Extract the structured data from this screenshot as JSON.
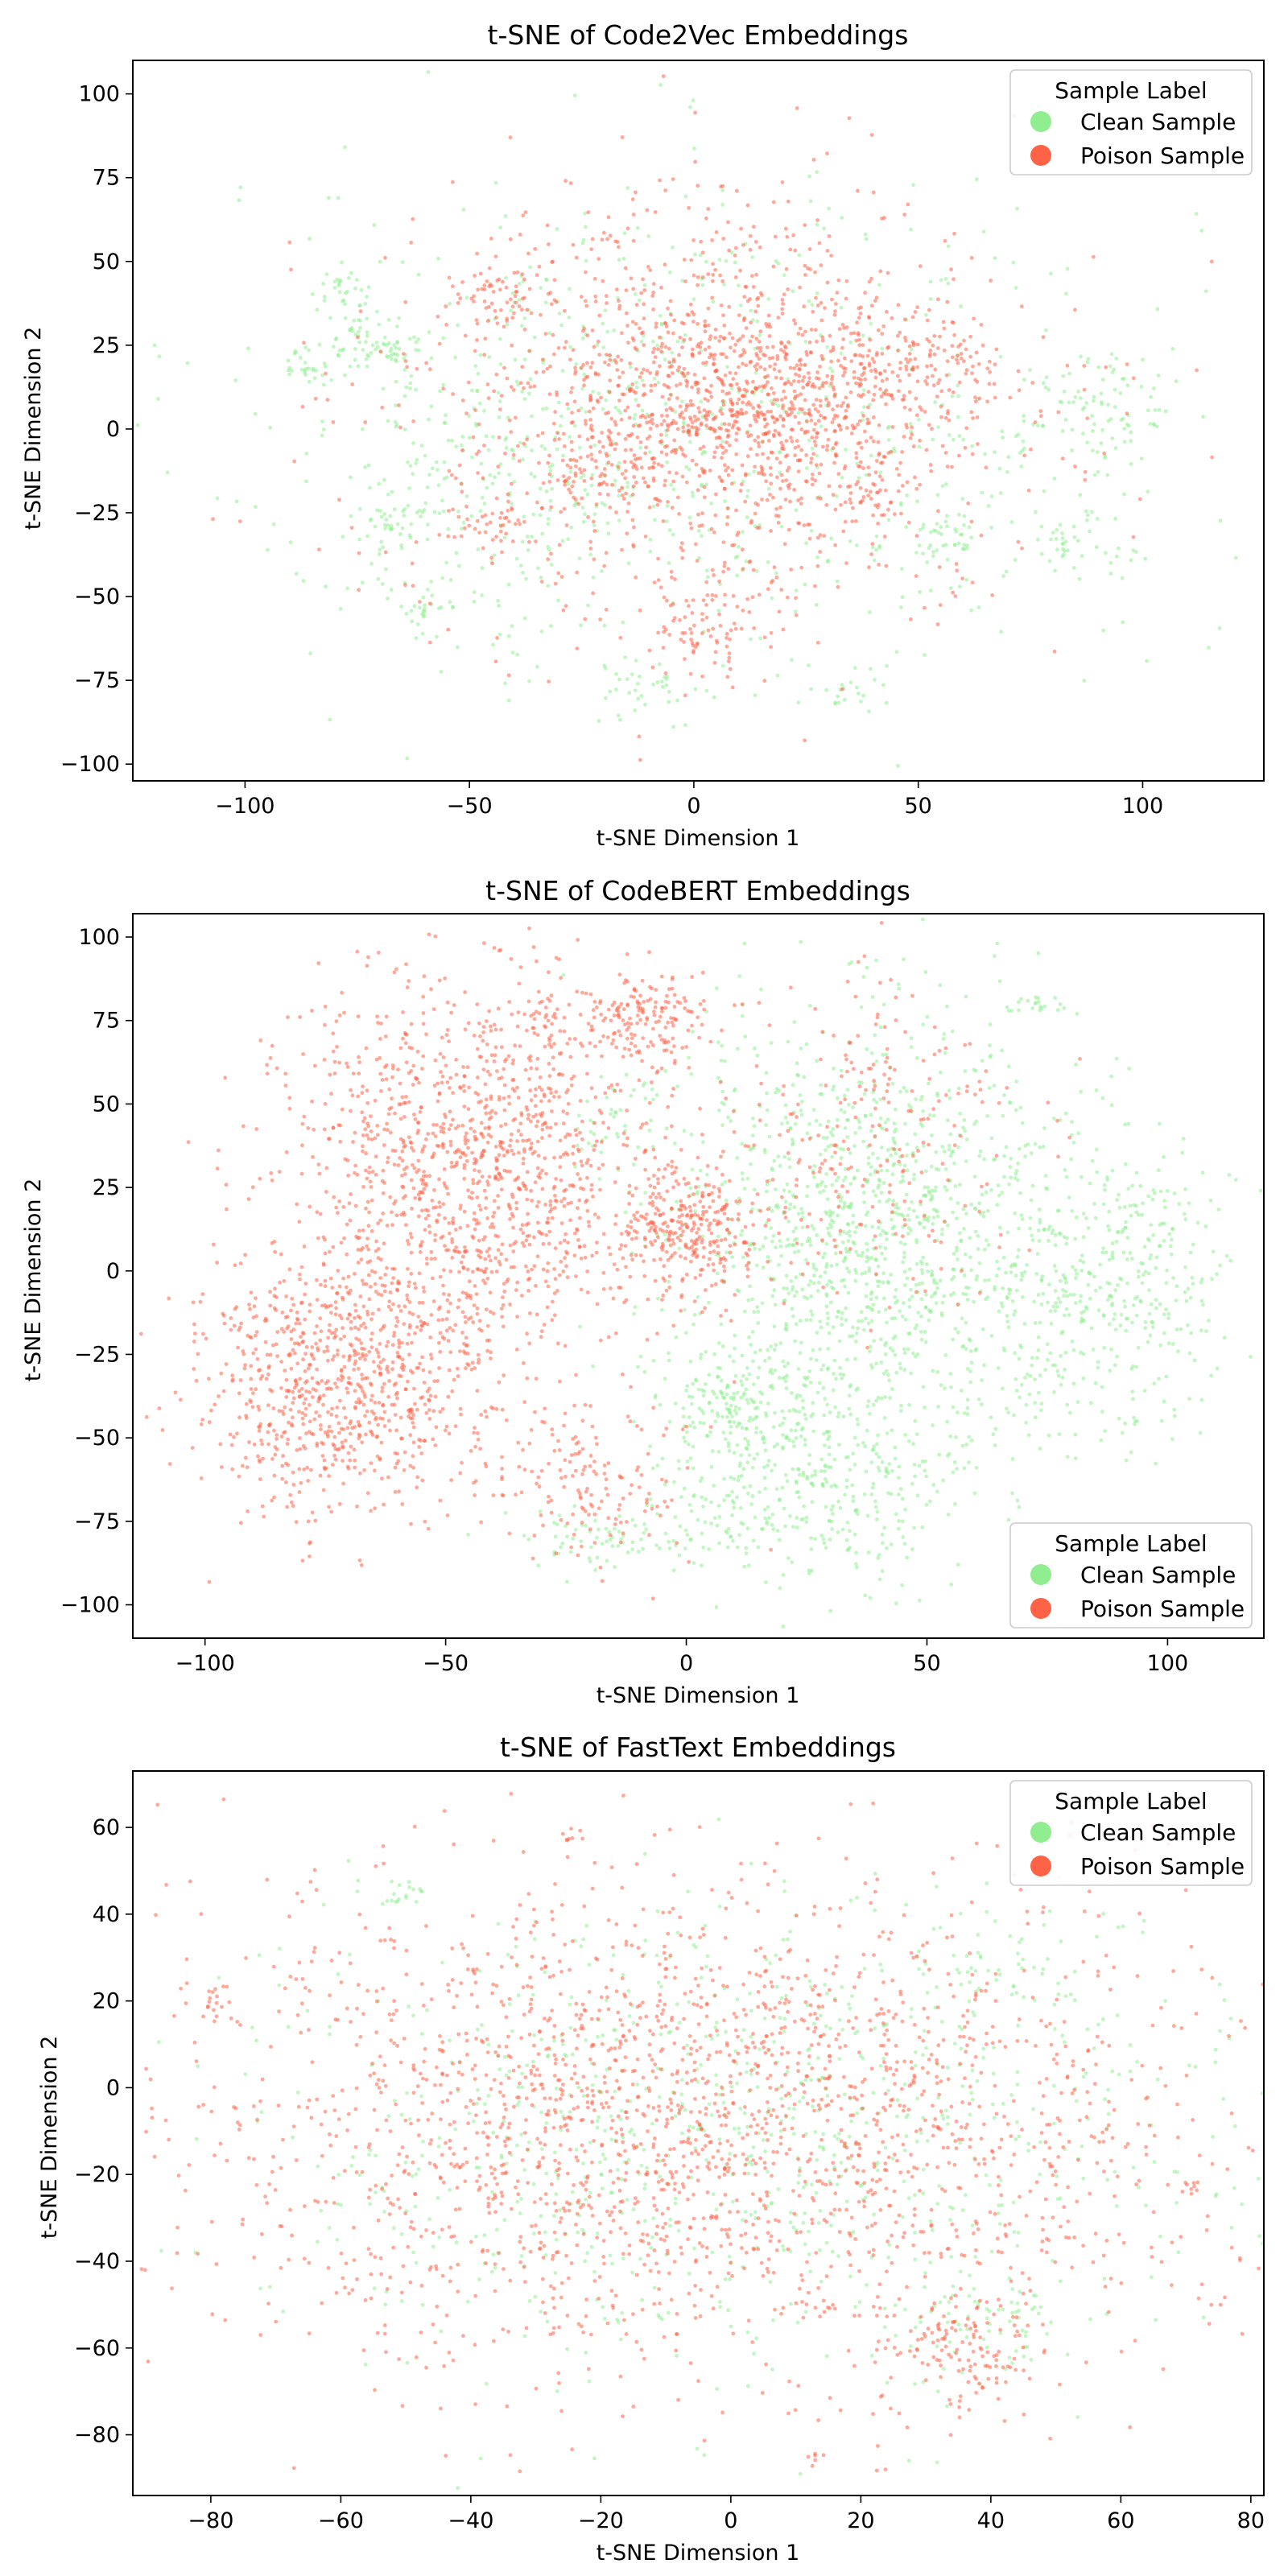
{
  "chart_data": [
    {
      "type": "scatter",
      "title": "t-SNE of Code2Vec Embeddings",
      "xlabel": "t-SNE Dimension 1",
      "ylabel": "t-SNE Dimension 2",
      "xlim": [
        -125,
        127
      ],
      "ylim": [
        -105,
        110
      ],
      "xticks": [
        -100,
        -50,
        0,
        50,
        100
      ],
      "yticks": [
        -100,
        -75,
        -50,
        -25,
        0,
        25,
        50,
        75,
        100
      ],
      "grid": false,
      "legend": {
        "title": "Sample Label",
        "position": "top-right",
        "entries": [
          {
            "label": "Clean Sample",
            "color": "#90ee90"
          },
          {
            "label": "Poison Sample",
            "color": "#ff6347"
          }
        ]
      },
      "series": [
        {
          "name": "Clean Sample",
          "color": "#90ee90",
          "clusters": [
            {
              "cx": 0,
              "cy": 0,
              "sx": 55,
              "sy": 38,
              "n": 700
            },
            {
              "cx": -70,
              "cy": 26,
              "sx": 5,
              "sy": 4,
              "n": 70
            },
            {
              "cx": -86,
              "cy": 19,
              "sx": 3,
              "sy": 3,
              "n": 25
            },
            {
              "cx": -78,
              "cy": 42,
              "sx": 3,
              "sy": 3,
              "n": 25
            },
            {
              "cx": -67,
              "cy": -29,
              "sx": 5,
              "sy": 4,
              "n": 40
            },
            {
              "cx": -60,
              "cy": -54,
              "sx": 4,
              "sy": 3,
              "n": 25
            },
            {
              "cx": 90,
              "cy": 5,
              "sx": 9,
              "sy": 10,
              "n": 90
            },
            {
              "cx": 84,
              "cy": -34,
              "sx": 5,
              "sy": 4,
              "n": 40
            },
            {
              "cx": 56,
              "cy": -33,
              "sx": 4,
              "sy": 4,
              "n": 30
            },
            {
              "cx": -8,
              "cy": -78,
              "sx": 6,
              "sy": 4,
              "n": 35
            },
            {
              "cx": 35,
              "cy": -78,
              "sx": 4,
              "sy": 3,
              "n": 20
            },
            {
              "cx": -40,
              "cy": -5,
              "sx": 15,
              "sy": 25,
              "n": 150
            }
          ]
        },
        {
          "name": "Poison Sample",
          "color": "#ff6347",
          "clusters": [
            {
              "cx": 5,
              "cy": 5,
              "sx": 35,
              "sy": 32,
              "n": 1200
            },
            {
              "cx": 15,
              "cy": 10,
              "sx": 18,
              "sy": 14,
              "n": 500
            },
            {
              "cx": -45,
              "cy": 40,
              "sx": 5,
              "sy": 6,
              "n": 60
            },
            {
              "cx": 50,
              "cy": 18,
              "sx": 7,
              "sy": 6,
              "n": 80
            },
            {
              "cx": -20,
              "cy": -8,
              "sx": 8,
              "sy": 7,
              "n": 90
            },
            {
              "cx": 3,
              "cy": -60,
              "sx": 6,
              "sy": 7,
              "n": 70
            },
            {
              "cx": -45,
              "cy": -28,
              "sx": 4,
              "sy": 4,
              "n": 30
            },
            {
              "cx": 40,
              "cy": -17,
              "sx": 4,
              "sy": 4,
              "n": 30
            }
          ]
        }
      ]
    },
    {
      "type": "scatter",
      "title": "t-SNE of CodeBERT Embeddings",
      "xlabel": "t-SNE Dimension 1",
      "ylabel": "t-SNE Dimension 2",
      "xlim": [
        -115,
        120
      ],
      "ylim": [
        -110,
        107
      ],
      "xticks": [
        -100,
        -50,
        0,
        50,
        100
      ],
      "yticks": [
        -100,
        -75,
        -50,
        -25,
        0,
        25,
        50,
        75,
        100
      ],
      "grid": false,
      "legend": {
        "title": "Sample Label",
        "position": "bottom-right",
        "entries": [
          {
            "label": "Clean Sample",
            "color": "#90ee90"
          },
          {
            "label": "Poison Sample",
            "color": "#ff6347"
          }
        ]
      },
      "series": [
        {
          "name": "Clean Sample",
          "color": "#90ee90",
          "clusters": [
            {
              "cx": 40,
              "cy": 10,
              "sx": 22,
              "sy": 32,
              "n": 1300
            },
            {
              "cx": 90,
              "cy": -5,
              "sx": 12,
              "sy": 22,
              "n": 350
            },
            {
              "cx": 25,
              "cy": -65,
              "sx": 15,
              "sy": 14,
              "n": 350
            },
            {
              "cx": 10,
              "cy": -40,
              "sx": 8,
              "sy": 10,
              "n": 150
            },
            {
              "cx": -15,
              "cy": -80,
              "sx": 12,
              "sy": 5,
              "n": 80
            },
            {
              "cx": -15,
              "cy": 45,
              "sx": 5,
              "sy": 8,
              "n": 40
            },
            {
              "cx": 72,
              "cy": 79,
              "sx": 4,
              "sy": 2,
              "n": 20
            }
          ]
        },
        {
          "name": "Poison Sample",
          "color": "#ff6347",
          "clusters": [
            {
              "cx": -45,
              "cy": 30,
              "sx": 20,
              "sy": 28,
              "n": 1300
            },
            {
              "cx": -72,
              "cy": -35,
              "sx": 15,
              "sy": 18,
              "n": 800
            },
            {
              "cx": 0,
              "cy": 12,
              "sx": 7,
              "sy": 10,
              "n": 300
            },
            {
              "cx": -10,
              "cy": 76,
              "sx": 6,
              "sy": 7,
              "n": 150
            },
            {
              "cx": -30,
              "cy": 75,
              "sx": 3,
              "sy": 5,
              "n": 30
            },
            {
              "cx": 35,
              "cy": 40,
              "sx": 18,
              "sy": 25,
              "n": 250
            },
            {
              "cx": -20,
              "cy": -65,
              "sx": 10,
              "sy": 12,
              "n": 150
            }
          ]
        }
      ]
    },
    {
      "type": "scatter",
      "title": "t-SNE of FastText Embeddings",
      "xlabel": "t-SNE Dimension 1",
      "ylabel": "t-SNE Dimension 2",
      "xlim": [
        -92,
        82
      ],
      "ylim": [
        -94,
        73
      ],
      "xticks": [
        -80,
        -60,
        -40,
        -20,
        0,
        20,
        40,
        60,
        80
      ],
      "yticks": [
        -80,
        -60,
        -40,
        -20,
        0,
        20,
        40,
        60
      ],
      "grid": false,
      "legend": {
        "title": "Sample Label",
        "position": "top-right",
        "entries": [
          {
            "label": "Clean Sample",
            "color": "#90ee90"
          },
          {
            "label": "Poison Sample",
            "color": "#ff6347"
          }
        ]
      },
      "series": [
        {
          "name": "Clean Sample",
          "color": "#90ee90",
          "clusters": [
            {
              "cx": 0,
              "cy": -10,
              "sx": 38,
              "sy": 28,
              "n": 900
            },
            {
              "cx": -50,
              "cy": 45,
              "sx": 3,
              "sy": 2,
              "n": 20
            },
            {
              "cx": 38,
              "cy": -55,
              "sx": 6,
              "sy": 6,
              "n": 60
            },
            {
              "cx": 40,
              "cy": 27,
              "sx": 5,
              "sy": 4,
              "n": 40
            }
          ]
        },
        {
          "name": "Poison Sample",
          "color": "#ff6347",
          "clusters": [
            {
              "cx": -5,
              "cy": -10,
              "sx": 40,
              "sy": 28,
              "n": 2200
            },
            {
              "cx": 35,
              "cy": -60,
              "sx": 6,
              "sy": 7,
              "n": 120
            },
            {
              "cx": -80,
              "cy": 20,
              "sx": 1.5,
              "sy": 2,
              "n": 15
            },
            {
              "cx": -25,
              "cy": 58,
              "sx": 1,
              "sy": 1,
              "n": 8
            },
            {
              "cx": 72,
              "cy": -23,
              "sx": 1,
              "sy": 1,
              "n": 8
            },
            {
              "cx": 13,
              "cy": -85,
              "sx": 1,
              "sy": 1,
              "n": 6
            }
          ]
        }
      ]
    }
  ]
}
